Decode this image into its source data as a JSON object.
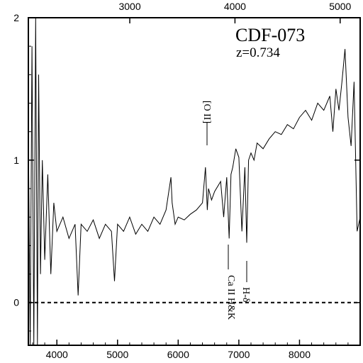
{
  "chart_data": {
    "type": "line",
    "object_name": "CDF-073",
    "redshift_label": "z=0.734",
    "xlabel": "",
    "ylabel": "",
    "x_bottom_range": [
      3530,
      9000
    ],
    "x_bottom_ticks": [
      4000,
      5000,
      6000,
      7000,
      8000
    ],
    "x_top_ticks": [
      3000,
      4000,
      5000
    ],
    "top_axis_rest_frame_redshift": 0.734,
    "ylim": [
      -0.3,
      2.0
    ],
    "y_ticks": [
      0,
      1,
      2
    ],
    "zero_line": {
      "y": 0,
      "style": "dashed"
    },
    "line_ids": [
      {
        "label": "[O II]",
        "x": 6460,
        "y": 1.22
      },
      {
        "label": "Ca II H&K",
        "x": 6850,
        "y": 0.4
      },
      {
        "label": "H-δ",
        "x": 7110,
        "y": 0.28
      }
    ],
    "series": [
      {
        "x": [
          3530,
          3560,
          3590,
          3620,
          3650,
          3680,
          3700,
          3730,
          3760,
          3800,
          3850,
          3900,
          3950,
          4000,
          4100,
          4200,
          4300,
          4350,
          4400,
          4500,
          4600,
          4700,
          4800,
          4900,
          4950,
          5000,
          5100,
          5200,
          5300,
          5400,
          5500,
          5600,
          5700,
          5800,
          5880,
          5900,
          5950,
          6000,
          6100,
          6200,
          6300,
          6400,
          6450,
          6480,
          6500,
          6550,
          6600,
          6700,
          6750,
          6800,
          6840,
          6870,
          6900,
          6950,
          7000,
          7050,
          7100,
          7130,
          7160,
          7200,
          7250,
          7300,
          7400,
          7500,
          7600,
          7700,
          7800,
          7900,
          8000,
          8100,
          8200,
          8300,
          8400,
          8500,
          8550,
          8600,
          8650,
          8700,
          8750,
          8800,
          8850,
          8900,
          8950,
          9000
        ],
        "y": [
          1.2,
          -0.3,
          1.8,
          -0.3,
          2.0,
          -0.3,
          1.6,
          0.2,
          1.0,
          0.3,
          0.9,
          0.2,
          0.7,
          0.5,
          0.6,
          0.45,
          0.55,
          0.05,
          0.55,
          0.5,
          0.58,
          0.45,
          0.55,
          0.5,
          0.15,
          0.55,
          0.5,
          0.6,
          0.48,
          0.55,
          0.5,
          0.6,
          0.55,
          0.65,
          0.88,
          0.7,
          0.55,
          0.6,
          0.58,
          0.62,
          0.65,
          0.7,
          0.95,
          0.65,
          0.8,
          0.72,
          0.78,
          0.85,
          0.6,
          0.88,
          0.45,
          0.9,
          0.95,
          1.08,
          1.02,
          0.5,
          0.95,
          0.42,
          1.0,
          1.05,
          1.0,
          1.12,
          1.08,
          1.15,
          1.2,
          1.18,
          1.25,
          1.22,
          1.3,
          1.35,
          1.28,
          1.4,
          1.35,
          1.45,
          1.2,
          1.5,
          1.35,
          1.55,
          1.78,
          1.3,
          1.1,
          1.55,
          0.5,
          0.6
        ]
      }
    ]
  }
}
